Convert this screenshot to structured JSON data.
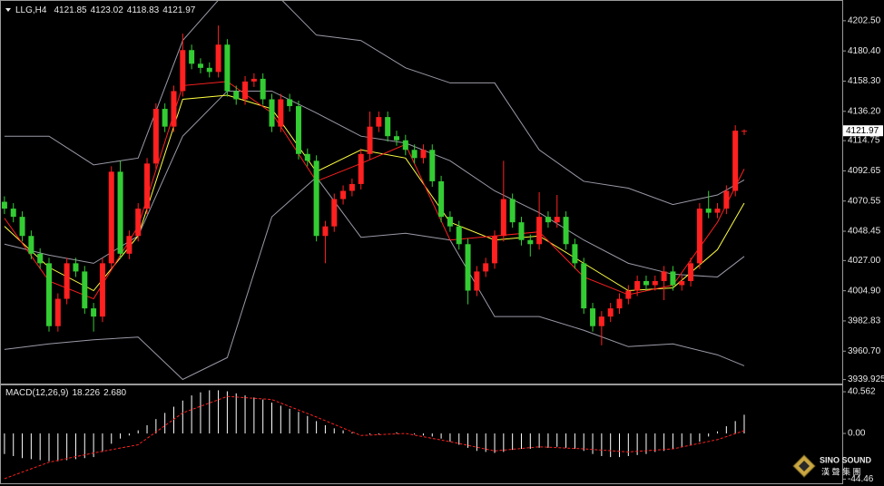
{
  "chart_data": [
    {
      "type": "candlestick",
      "title": "LLG,H4",
      "open": [
        4070,
        4065,
        4059,
        4045,
        4032,
        4025,
        3979,
        3999,
        4025,
        4019,
        3992,
        3986,
        4025,
        4092,
        4032,
        4045,
        4065,
        4098,
        4138,
        4125,
        4151,
        4181,
        4171,
        4168,
        4165,
        4185,
        4151,
        4145,
        4158,
        4160,
        4145,
        4125,
        4145,
        4140,
        4105,
        4100,
        4045,
        4052,
        4072,
        4078,
        4083,
        4105,
        4125,
        4132,
        4118,
        4115,
        4108,
        4102,
        4108,
        4085,
        4059,
        4052,
        4039,
        4005,
        4019,
        4025,
        4045,
        4072,
        4055,
        4042,
        4039,
        4059,
        4055,
        4059,
        4039,
        4025,
        3992,
        3979,
        3986,
        3992,
        3999,
        4005,
        4012,
        4009,
        4012,
        4019,
        4009,
        4012,
        4025,
        4065,
        4062,
        4065,
        4078,
        4121.85
      ],
      "high": [
        4074,
        4069,
        4063,
        4049,
        4036,
        4029,
        4003,
        4029,
        4029,
        4023,
        3996,
        4029,
        4096,
        4100,
        4049,
        4069,
        4102,
        4142,
        4142,
        4155,
        4193,
        4185,
        4175,
        4172,
        4199,
        4189,
        4155,
        4162,
        4164,
        4164,
        4149,
        4149,
        4149,
        4144,
        4109,
        4104,
        4056,
        4076,
        4082,
        4087,
        4109,
        4136,
        4136,
        4136,
        4122,
        4119,
        4112,
        4112,
        4112,
        4089,
        4063,
        4056,
        4043,
        4023,
        4029,
        4049,
        4100,
        4076,
        4059,
        4046,
        4077,
        4063,
        4075,
        4063,
        4043,
        4029,
        3996,
        3990,
        3996,
        4003,
        4009,
        4016,
        4016,
        4016,
        4023,
        4023,
        4016,
        4029,
        4069,
        4078,
        4069,
        4082,
        4126,
        4123.02
      ],
      "low": [
        4061,
        4055,
        4041,
        4028,
        4021,
        3975,
        3975,
        3995,
        4015,
        3988,
        3975,
        3982,
        4021,
        4028,
        4028,
        4041,
        4061,
        4094,
        4121,
        4121,
        4147,
        4167,
        4164,
        4161,
        4161,
        4147,
        4141,
        4141,
        4154,
        4141,
        4121,
        4121,
        4136,
        4101,
        4096,
        4041,
        4025,
        4048,
        4068,
        4074,
        4079,
        4101,
        4121,
        4114,
        4111,
        4104,
        4098,
        4098,
        4081,
        4055,
        4048,
        4035,
        3995,
        4001,
        4015,
        4021,
        4041,
        4051,
        4038,
        4030,
        4035,
        4051,
        4051,
        4035,
        4021,
        3988,
        3975,
        3965,
        3982,
        3988,
        3995,
        4001,
        4005,
        4005,
        3998,
        4005,
        4005,
        4008,
        4021,
        4058,
        4058,
        4061,
        4074,
        4118.83
      ],
      "close": [
        4065,
        4059,
        4045,
        4032,
        4025,
        3979,
        3999,
        4025,
        4019,
        3992,
        3986,
        4025,
        4092,
        4032,
        4045,
        4065,
        4098,
        4138,
        4125,
        4151,
        4181,
        4171,
        4168,
        4165,
        4185,
        4151,
        4145,
        4158,
        4160,
        4145,
        4125,
        4145,
        4140,
        4105,
        4100,
        4045,
        4052,
        4072,
        4078,
        4083,
        4105,
        4125,
        4132,
        4118,
        4115,
        4108,
        4102,
        4108,
        4085,
        4059,
        4052,
        4039,
        4005,
        4019,
        4025,
        4045,
        4072,
        4055,
        4042,
        4039,
        4059,
        4055,
        4059,
        4039,
        4025,
        3992,
        3979,
        3986,
        3992,
        3999,
        4005,
        4012,
        4009,
        4012,
        4019,
        4009,
        4012,
        4025,
        4065,
        4062,
        4065,
        4078,
        4122,
        4121.97
      ],
      "up_color": "#ff2020",
      "down_color": "#33cc33",
      "overlays": [
        {
          "color": "#9a9aa8",
          "x": [
            0,
            5,
            10,
            15,
            20,
            25,
            30,
            35,
            40,
            45,
            50,
            55,
            60,
            65,
            70,
            75,
            80,
            83
          ],
          "values": [
            4118,
            4118,
            4097,
            4102,
            4188,
            4225,
            4225,
            4192,
            4188,
            4168,
            4157,
            4157,
            4108,
            4085,
            4080,
            4068,
            4075,
            4086
          ]
        },
        {
          "color": "#9a9aa8",
          "x": [
            0,
            5,
            10,
            15,
            20,
            25,
            30,
            35,
            40,
            45,
            50,
            55,
            60,
            65,
            70,
            75,
            80,
            83
          ],
          "values": [
            3962,
            3966,
            3969,
            3971,
            3940,
            3956,
            4059,
            4088,
            4044,
            4047,
            4042,
            3986,
            3986,
            3976,
            3964,
            3966,
            3958,
            3950
          ]
        },
        {
          "color": "#9a9aa8",
          "x": [
            0,
            5,
            10,
            15,
            20,
            25,
            30,
            35,
            40,
            45,
            50,
            55,
            60,
            65,
            70,
            75,
            80,
            83
          ],
          "values": [
            4039,
            4031,
            4025,
            4045,
            4118,
            4151,
            4151,
            4135,
            4118,
            4113,
            4100,
            4078,
            4062,
            4042,
            4025,
            4017,
            4015,
            4030
          ]
        },
        {
          "color": "#ffff40",
          "x": [
            0,
            5,
            10,
            15,
            20,
            25,
            30,
            35,
            40,
            45,
            50,
            55,
            60,
            65,
            70,
            75,
            80,
            83
          ],
          "values": [
            4052,
            4022,
            4005,
            4045,
            4145,
            4148,
            4138,
            4092,
            4108,
            4102,
            4055,
            4042,
            4045,
            4025,
            4005,
            4007,
            4035,
            4069
          ]
        },
        {
          "color": "#ff2020",
          "x": [
            0,
            5,
            10,
            15,
            20,
            25,
            30,
            35,
            40,
            45,
            50,
            55,
            60,
            65,
            70,
            75,
            80,
            83
          ],
          "values": [
            4058,
            4012,
            3999,
            4052,
            4155,
            4158,
            4135,
            4085,
            4098,
            4112,
            4042,
            4045,
            4048,
            4015,
            4002,
            4009,
            4055,
            4094
          ]
        }
      ],
      "xlim": [
        -0.5,
        94
      ],
      "ylim": [
        3937,
        4215
      ],
      "yticks": [
        {
          "value": 4202.5,
          "label": "4202.50"
        },
        {
          "value": 4180.4,
          "label": "4180.40"
        },
        {
          "value": 4158.3,
          "label": "4158.30"
        },
        {
          "value": 4136.2,
          "label": "4136.20"
        },
        4114.75,
        4092.65,
        4070.55,
        4048.45,
        {
          "value": 4027,
          "label": "4027.00"
        },
        {
          "value": 4004.9,
          "label": "4004.90"
        },
        3982.83,
        {
          "value": 3960.7,
          "label": "3960.70"
        },
        3939.925
      ]
    },
    {
      "type": "macd",
      "title": "MACD(12,26,9)",
      "color": "#ffffff",
      "values": [
        -20,
        -22,
        -24,
        -25,
        -26,
        -27,
        -27,
        -26,
        -25,
        -24,
        -23,
        -18,
        -10,
        -5,
        -2,
        3,
        8,
        14,
        20,
        26,
        32,
        37,
        40,
        42,
        42,
        41,
        39,
        37,
        35,
        33,
        30,
        27,
        24,
        21,
        17,
        12,
        8,
        5,
        3,
        1,
        0,
        -1,
        -1,
        0,
        1,
        0,
        -1,
        -2,
        -3,
        -5,
        -8,
        -11,
        -14,
        -17,
        -18,
        -19,
        -18,
        -16,
        -15,
        -15,
        -14,
        -14,
        -13,
        -14,
        -15,
        -17,
        -20,
        -22,
        -23,
        -23,
        -22,
        -21,
        -20,
        -18,
        -17,
        -15,
        -13,
        -11,
        -8,
        -3,
        2,
        7,
        12,
        18.226
      ],
      "signal": {
        "color": "#ff2020",
        "x": [
          0,
          5,
          10,
          15,
          20,
          25,
          30,
          35,
          40,
          45,
          50,
          55,
          60,
          65,
          70,
          75,
          80,
          83
        ],
        "values": [
          -44,
          -28,
          -19,
          -11,
          20,
          36,
          33,
          16,
          -2,
          0,
          -8,
          -17,
          -13,
          -15,
          -18,
          -15,
          -6,
          2.68
        ]
      },
      "signal_value": {
        "value": 2.68,
        "label": "2.680"
      },
      "xlim": [
        -0.5,
        94
      ],
      "ylim": [
        -47.6,
        45.9
      ],
      "yticks": [
        40.562,
        {
          "value": 0,
          "label": "0.00"
        },
        -44.46
      ]
    }
  ],
  "logo": {
    "name": "SINO SOUND",
    "subtitle": "漢 聲 集 團"
  }
}
